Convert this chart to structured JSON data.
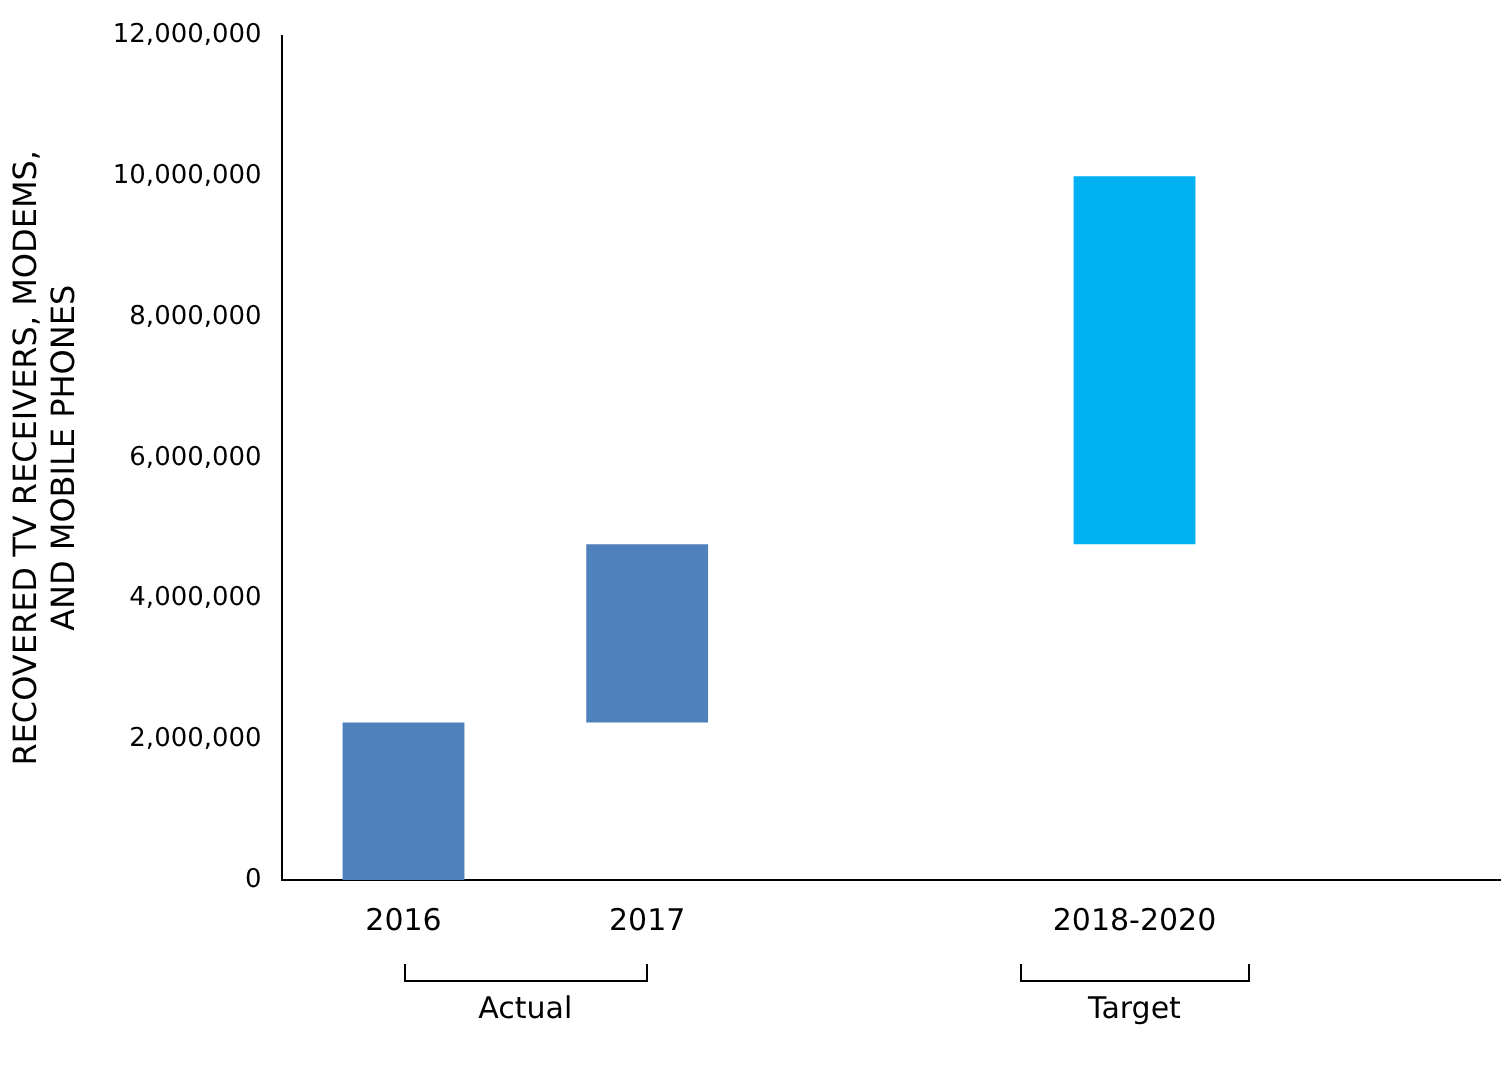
{
  "chart_data": {
    "type": "bar",
    "ylabel": "RECOVERED TV RECEIVERS, MODEMS, AND MOBILE PHONES",
    "categories": [
      "2016",
      "2017",
      null,
      "2018-2020",
      null
    ],
    "values": [
      2240000,
      2530000,
      null,
      5230000,
      null
    ],
    "base": [
      0,
      2240000,
      null,
      4770000,
      null
    ],
    "colors": [
      "#4f81bd",
      "#4f81bd",
      null,
      "#00b0f0",
      null
    ],
    "ylim": [
      0,
      12000000
    ],
    "yticks": [
      0,
      {
        "value": 2000000,
        "label": "2,000,000"
      },
      {
        "value": 4000000,
        "label": "4,000,000"
      },
      {
        "value": 6000000,
        "label": "6,000,000"
      },
      {
        "value": 8000000,
        "label": "8,000,000"
      },
      {
        "value": 10000000,
        "label": "10,000,000"
      },
      {
        "value": 12000000,
        "label": "12,000,000"
      }
    ],
    "annotations": [
      "Actual",
      "Target"
    ],
    "grid": false,
    "legend": false
  }
}
